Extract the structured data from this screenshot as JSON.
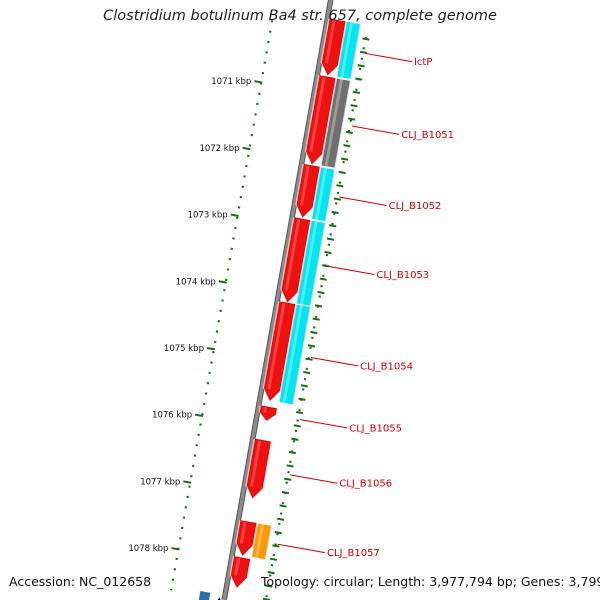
{
  "title": "Clostridium botulinum Ba4 str. 657, complete genome",
  "footer": {
    "accession": "Accession: NC_012658",
    "stats": "Topology: circular; Length: 3,977,794 bp; Genes: 3,799"
  },
  "colors": {
    "background": "#ffffff",
    "backbone": "#8c8c8c",
    "cds": "#ee1111",
    "blast_match": "#00e5f0",
    "no_match": "#707070",
    "partial_match": "#ff9900",
    "ruler_ticks": "#1a6e1a",
    "gene_label": "#cc0000"
  },
  "ruler": [
    {
      "kbp": 1071,
      "label": "1071 kbp"
    },
    {
      "kbp": 1072,
      "label": "1072 kbp"
    },
    {
      "kbp": 1073,
      "label": "1073 kbp"
    },
    {
      "kbp": 1074,
      "label": "1074 kbp"
    },
    {
      "kbp": 1075,
      "label": "1075 kbp"
    },
    {
      "kbp": 1076,
      "label": "1076 kbp"
    },
    {
      "kbp": 1077,
      "label": "1077 kbp"
    },
    {
      "kbp": 1078,
      "label": "1078 kbp"
    }
  ],
  "genes": [
    {
      "label": "lctP",
      "start_kbp": 1069.9,
      "end_kbp": 1070.72,
      "match": "blast_match"
    },
    {
      "label": "CLJ_B1051",
      "start_kbp": 1070.75,
      "end_kbp": 1072.05,
      "match": "no_match"
    },
    {
      "label": "CLJ_B1052",
      "start_kbp": 1072.08,
      "end_kbp": 1072.85,
      "match": "blast_match"
    },
    {
      "label": "CLJ_B1053",
      "start_kbp": 1072.88,
      "end_kbp": 1074.12,
      "match": "blast_match"
    },
    {
      "label": "CLJ_B1054",
      "start_kbp": 1074.14,
      "end_kbp": 1075.6,
      "match": "blast_match"
    },
    {
      "label": "CLJ_B1055",
      "start_kbp": 1075.7,
      "end_kbp": 1075.9,
      "match": "none"
    },
    {
      "label": "CLJ_B1056",
      "start_kbp": 1076.2,
      "end_kbp": 1077.06,
      "match": "none"
    },
    {
      "label": "CLJ_B1057",
      "start_kbp": 1077.42,
      "end_kbp": 1077.92,
      "match": "partial_match"
    },
    {
      "label": "",
      "start_kbp": 1077.96,
      "end_kbp": 1078.4,
      "match": "none"
    }
  ]
}
